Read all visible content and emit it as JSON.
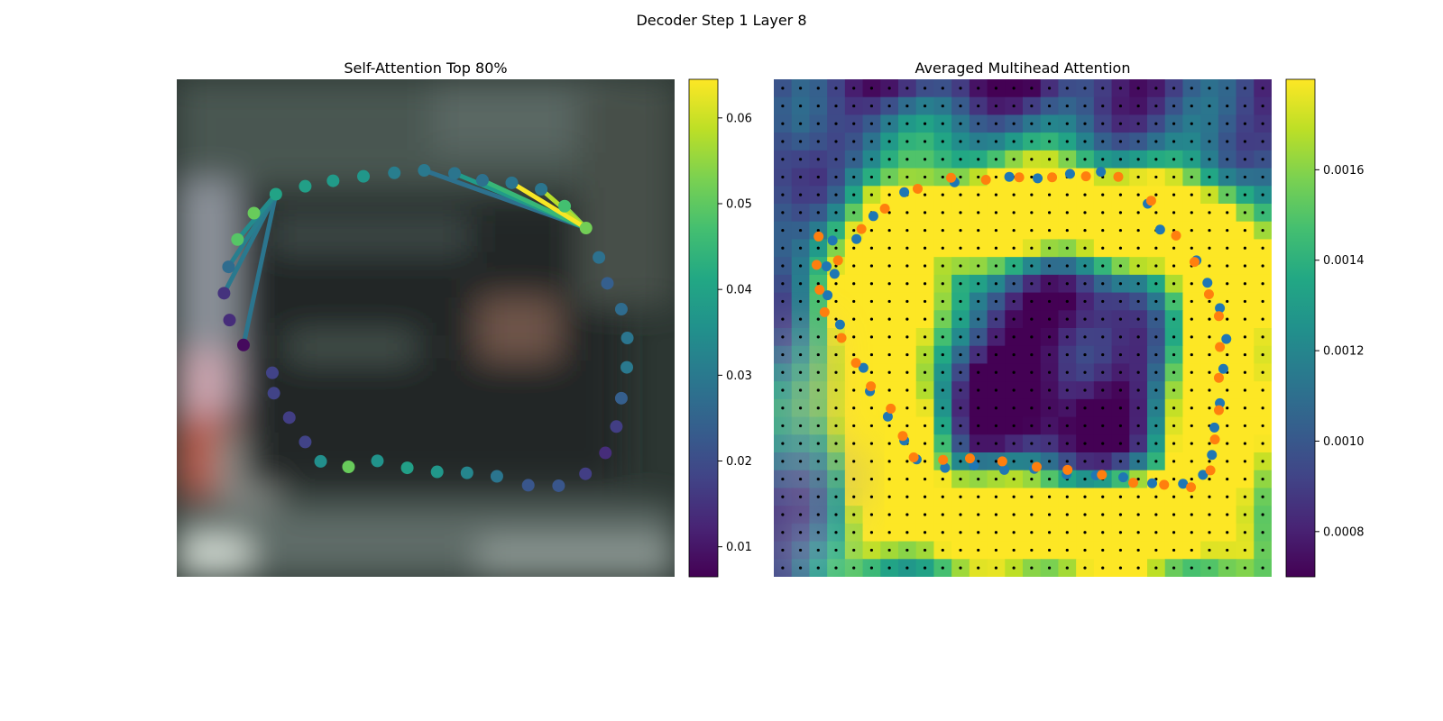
{
  "title": "Decoder Step 1 Layer 8",
  "colors": {
    "viridis": [
      "#440154",
      "#482475",
      "#414487",
      "#355f8d",
      "#2a788e",
      "#21918c",
      "#22a884",
      "#44bf70",
      "#7ad151",
      "#bddf26",
      "#fde725"
    ],
    "blue_points": "#1f77b4",
    "orange_points": "#ff7f0e",
    "grid_dots": "#000000"
  },
  "chart_data": [
    {
      "type": "scatter",
      "title": "Self-Attention Top 80%",
      "background": "blurred-photo",
      "colorbar": {
        "ticks": [
          0.01,
          0.02,
          0.03,
          0.04,
          0.05,
          0.06
        ],
        "tick_labels": [
          "0.01",
          "0.02",
          "0.03",
          "0.04",
          "0.05",
          "0.06"
        ],
        "range": [
          0.0065,
          0.0645
        ]
      },
      "xlim": [
        0,
        1
      ],
      "ylim": [
        0,
        1
      ],
      "points": [
        {
          "x": 0.497,
          "y": 0.817,
          "v": 0.03
        },
        {
          "x": 0.558,
          "y": 0.811,
          "v": 0.029
        },
        {
          "x": 0.614,
          "y": 0.797,
          "v": 0.028
        },
        {
          "x": 0.673,
          "y": 0.792,
          "v": 0.029
        },
        {
          "x": 0.732,
          "y": 0.779,
          "v": 0.029
        },
        {
          "x": 0.779,
          "y": 0.745,
          "v": 0.047
        },
        {
          "x": 0.822,
          "y": 0.701,
          "v": 0.052
        },
        {
          "x": 0.848,
          "y": 0.642,
          "v": 0.028
        },
        {
          "x": 0.865,
          "y": 0.59,
          "v": 0.024
        },
        {
          "x": 0.893,
          "y": 0.538,
          "v": 0.027
        },
        {
          "x": 0.905,
          "y": 0.48,
          "v": 0.029
        },
        {
          "x": 0.904,
          "y": 0.421,
          "v": 0.03
        },
        {
          "x": 0.893,
          "y": 0.359,
          "v": 0.024
        },
        {
          "x": 0.883,
          "y": 0.302,
          "v": 0.017
        },
        {
          "x": 0.861,
          "y": 0.249,
          "v": 0.014
        },
        {
          "x": 0.821,
          "y": 0.207,
          "v": 0.017
        },
        {
          "x": 0.767,
          "y": 0.183,
          "v": 0.022
        },
        {
          "x": 0.706,
          "y": 0.184,
          "v": 0.022
        },
        {
          "x": 0.643,
          "y": 0.202,
          "v": 0.029
        },
        {
          "x": 0.583,
          "y": 0.209,
          "v": 0.033
        },
        {
          "x": 0.523,
          "y": 0.211,
          "v": 0.037
        },
        {
          "x": 0.463,
          "y": 0.219,
          "v": 0.039
        },
        {
          "x": 0.403,
          "y": 0.233,
          "v": 0.036
        },
        {
          "x": 0.345,
          "y": 0.221,
          "v": 0.051
        },
        {
          "x": 0.289,
          "y": 0.232,
          "v": 0.035
        },
        {
          "x": 0.258,
          "y": 0.271,
          "v": 0.018
        },
        {
          "x": 0.226,
          "y": 0.32,
          "v": 0.017
        },
        {
          "x": 0.195,
          "y": 0.369,
          "v": 0.018
        },
        {
          "x": 0.192,
          "y": 0.41,
          "v": 0.018
        },
        {
          "x": 0.134,
          "y": 0.466,
          "v": 0.008
        },
        {
          "x": 0.106,
          "y": 0.516,
          "v": 0.014
        },
        {
          "x": 0.095,
          "y": 0.57,
          "v": 0.015
        },
        {
          "x": 0.104,
          "y": 0.623,
          "v": 0.027
        },
        {
          "x": 0.122,
          "y": 0.678,
          "v": 0.049
        },
        {
          "x": 0.155,
          "y": 0.731,
          "v": 0.051
        },
        {
          "x": 0.199,
          "y": 0.769,
          "v": 0.04
        },
        {
          "x": 0.258,
          "y": 0.785,
          "v": 0.039
        },
        {
          "x": 0.314,
          "y": 0.796,
          "v": 0.038
        },
        {
          "x": 0.375,
          "y": 0.805,
          "v": 0.037
        },
        {
          "x": 0.437,
          "y": 0.812,
          "v": 0.031
        }
      ],
      "links": [
        {
          "from": 6,
          "to": 0,
          "v": 0.028
        },
        {
          "from": 6,
          "to": 1,
          "v": 0.038
        },
        {
          "from": 6,
          "to": 2,
          "v": 0.045
        },
        {
          "from": 6,
          "to": 3,
          "v": 0.064
        },
        {
          "from": 6,
          "to": 4,
          "v": 0.058
        },
        {
          "from": 6,
          "to": 5,
          "v": 0.054
        },
        {
          "from": 35,
          "to": 31,
          "v": 0.03
        },
        {
          "from": 35,
          "to": 32,
          "v": 0.031
        },
        {
          "from": 35,
          "to": 33,
          "v": 0.034
        },
        {
          "from": 35,
          "to": 29,
          "v": 0.029
        }
      ]
    },
    {
      "type": "heatmap",
      "title": "Averaged Multihead Attention",
      "grid": {
        "rows": 28,
        "cols": 28
      },
      "colorbar": {
        "ticks": [
          0.0008,
          0.001,
          0.0012,
          0.0014,
          0.0016
        ],
        "tick_labels": [
          "0.0008",
          "0.0010",
          "0.0012",
          "0.0014",
          "0.0016"
        ],
        "range": [
          0.0007,
          0.0018
        ]
      },
      "xlim": [
        0,
        1
      ],
      "ylim": [
        0,
        1
      ],
      "blue_points": [
        {
          "x": 0.118,
          "y": 0.676
        },
        {
          "x": 0.106,
          "y": 0.624
        },
        {
          "x": 0.108,
          "y": 0.566
        },
        {
          "x": 0.133,
          "y": 0.507
        },
        {
          "x": 0.18,
          "y": 0.42
        },
        {
          "x": 0.193,
          "y": 0.373
        },
        {
          "x": 0.229,
          "y": 0.322
        },
        {
          "x": 0.262,
          "y": 0.274
        },
        {
          "x": 0.287,
          "y": 0.236
        },
        {
          "x": 0.344,
          "y": 0.219
        },
        {
          "x": 0.402,
          "y": 0.224
        },
        {
          "x": 0.463,
          "y": 0.215
        },
        {
          "x": 0.523,
          "y": 0.217
        },
        {
          "x": 0.588,
          "y": 0.206
        },
        {
          "x": 0.647,
          "y": 0.204
        },
        {
          "x": 0.702,
          "y": 0.2
        },
        {
          "x": 0.76,
          "y": 0.188
        },
        {
          "x": 0.822,
          "y": 0.187
        },
        {
          "x": 0.862,
          "y": 0.205
        },
        {
          "x": 0.88,
          "y": 0.245
        },
        {
          "x": 0.885,
          "y": 0.3
        },
        {
          "x": 0.896,
          "y": 0.349
        },
        {
          "x": 0.903,
          "y": 0.418
        },
        {
          "x": 0.909,
          "y": 0.478
        },
        {
          "x": 0.896,
          "y": 0.54
        },
        {
          "x": 0.871,
          "y": 0.591
        },
        {
          "x": 0.849,
          "y": 0.636
        },
        {
          "x": 0.776,
          "y": 0.698
        },
        {
          "x": 0.751,
          "y": 0.75
        },
        {
          "x": 0.657,
          "y": 0.814
        },
        {
          "x": 0.595,
          "y": 0.81
        },
        {
          "x": 0.53,
          "y": 0.801
        },
        {
          "x": 0.473,
          "y": 0.804
        },
        {
          "x": 0.363,
          "y": 0.793
        },
        {
          "x": 0.262,
          "y": 0.773
        },
        {
          "x": 0.2,
          "y": 0.725
        },
        {
          "x": 0.166,
          "y": 0.679
        },
        {
          "x": 0.122,
          "y": 0.609
        }
      ],
      "orange_points": [
        {
          "x": 0.09,
          "y": 0.684
        },
        {
          "x": 0.086,
          "y": 0.627
        },
        {
          "x": 0.092,
          "y": 0.577
        },
        {
          "x": 0.102,
          "y": 0.532
        },
        {
          "x": 0.136,
          "y": 0.48
        },
        {
          "x": 0.165,
          "y": 0.43
        },
        {
          "x": 0.195,
          "y": 0.383
        },
        {
          "x": 0.235,
          "y": 0.338
        },
        {
          "x": 0.259,
          "y": 0.283
        },
        {
          "x": 0.281,
          "y": 0.24
        },
        {
          "x": 0.34,
          "y": 0.235
        },
        {
          "x": 0.394,
          "y": 0.238
        },
        {
          "x": 0.459,
          "y": 0.232
        },
        {
          "x": 0.528,
          "y": 0.221
        },
        {
          "x": 0.59,
          "y": 0.215
        },
        {
          "x": 0.659,
          "y": 0.205
        },
        {
          "x": 0.722,
          "y": 0.189
        },
        {
          "x": 0.784,
          "y": 0.185
        },
        {
          "x": 0.838,
          "y": 0.18
        },
        {
          "x": 0.877,
          "y": 0.214
        },
        {
          "x": 0.886,
          "y": 0.276
        },
        {
          "x": 0.894,
          "y": 0.335
        },
        {
          "x": 0.894,
          "y": 0.4
        },
        {
          "x": 0.896,
          "y": 0.462
        },
        {
          "x": 0.894,
          "y": 0.524
        },
        {
          "x": 0.874,
          "y": 0.568
        },
        {
          "x": 0.845,
          "y": 0.633
        },
        {
          "x": 0.808,
          "y": 0.686
        },
        {
          "x": 0.758,
          "y": 0.756
        },
        {
          "x": 0.692,
          "y": 0.804
        },
        {
          "x": 0.627,
          "y": 0.805
        },
        {
          "x": 0.559,
          "y": 0.803
        },
        {
          "x": 0.493,
          "y": 0.803
        },
        {
          "x": 0.426,
          "y": 0.798
        },
        {
          "x": 0.356,
          "y": 0.802
        },
        {
          "x": 0.289,
          "y": 0.78
        },
        {
          "x": 0.223,
          "y": 0.74
        },
        {
          "x": 0.176,
          "y": 0.699
        },
        {
          "x": 0.129,
          "y": 0.636
        }
      ]
    }
  ]
}
